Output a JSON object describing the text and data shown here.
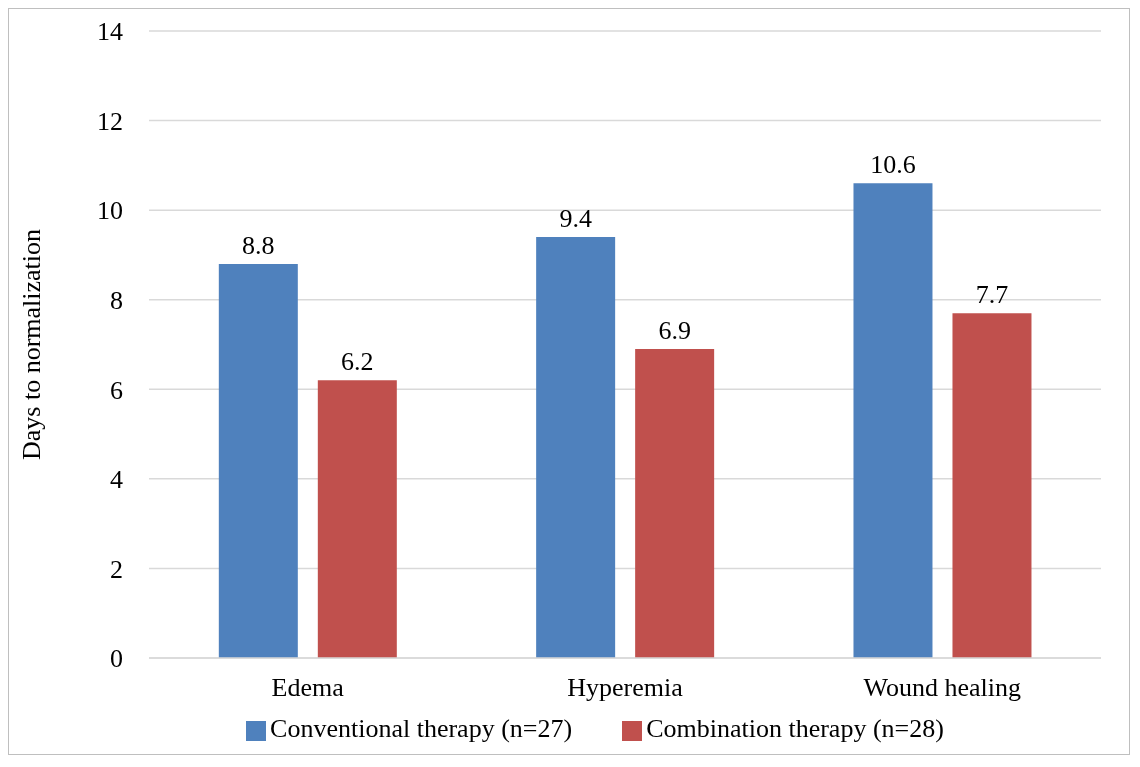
{
  "chart_data": {
    "type": "bar",
    "ylabel": "Days to normalization",
    "categories": [
      "Edema",
      "Hyperemia",
      "Wound healing"
    ],
    "series": [
      {
        "name": "Conventional therapy (n=27)",
        "color": "#4f81bd",
        "values": [
          8.8,
          9.4,
          10.6
        ]
      },
      {
        "name": "Combination therapy (n=28)",
        "color": "#c0504d",
        "values": [
          6.2,
          6.9,
          7.7
        ]
      }
    ],
    "ylim": [
      0,
      14
    ],
    "yticks": [
      0,
      2,
      4,
      6,
      8,
      10,
      12,
      14
    ],
    "grid": "y",
    "legend": "bottom",
    "data_labels": true
  }
}
